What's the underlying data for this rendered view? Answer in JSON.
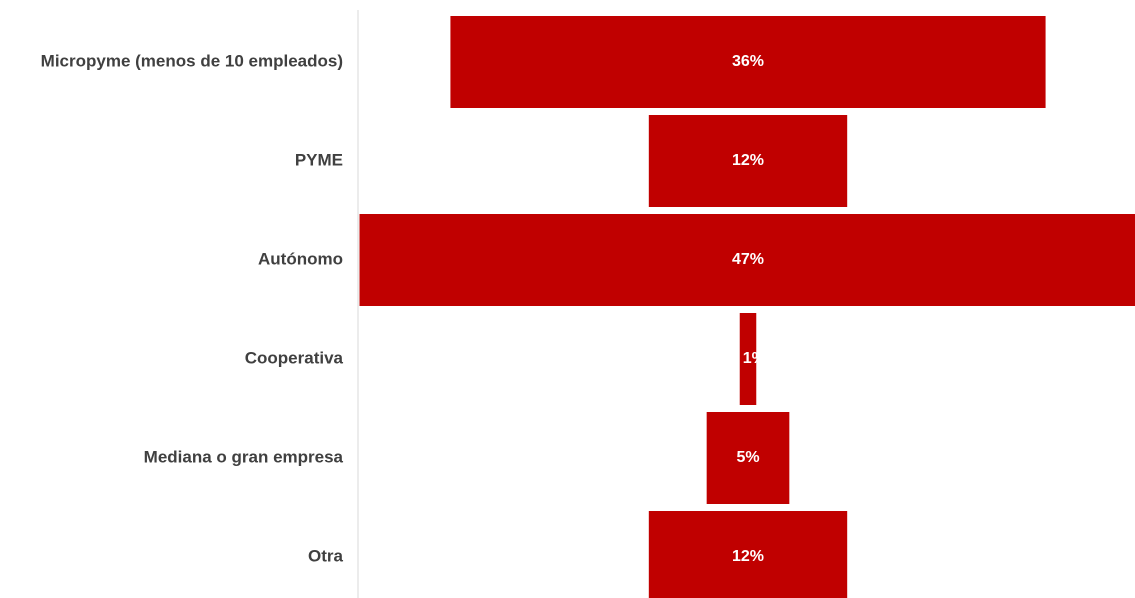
{
  "chart_data": {
    "type": "funnel",
    "categories": [
      "Micropyme (menos de 10 empleados)",
      "PYME",
      "Autónomo",
      "Cooperativa",
      "Mediana o gran empresa",
      "Otra"
    ],
    "values": [
      36,
      12,
      47,
      1,
      5,
      12
    ],
    "value_labels": [
      "36%",
      "12%",
      "47%",
      "1%",
      "5%",
      "12%"
    ],
    "color": "#c00000"
  }
}
